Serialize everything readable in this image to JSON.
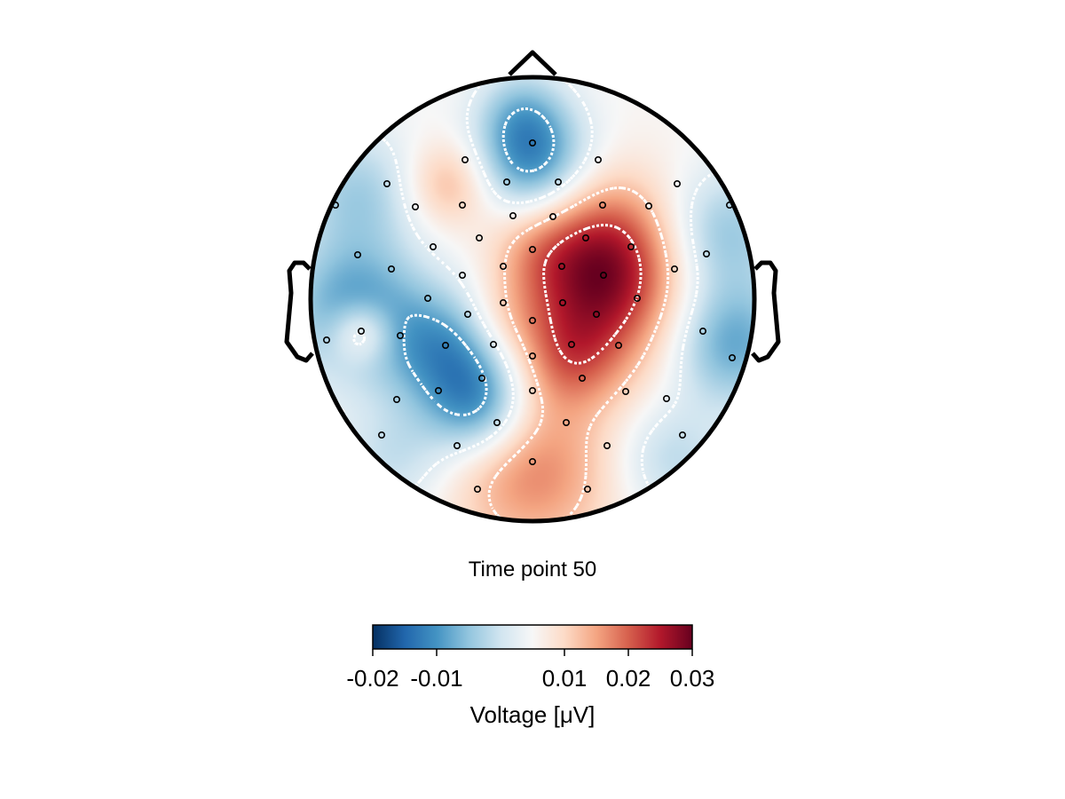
{
  "chart_data": {
    "type": "heatmap",
    "subtype": "topoplot",
    "title": "Time point 50",
    "colorbar": {
      "label": "Voltage [μV]",
      "range": [
        -0.02,
        0.03
      ],
      "ticks": [
        -0.02,
        -0.01,
        0.01,
        0.02,
        0.03
      ],
      "tick_labels": [
        "-0.02",
        "-0.01",
        "0.01",
        "0.02",
        "0.03"
      ],
      "colormap": "RdBu_r",
      "colormap_stops": [
        "#053061",
        "#2166ac",
        "#4393c3",
        "#92c5de",
        "#d1e5f0",
        "#f7f7f7",
        "#fddbc7",
        "#f4a582",
        "#d6604d",
        "#b2182b",
        "#67001f"
      ],
      "orientation": "horizontal",
      "position": "bottom"
    },
    "contours": {
      "style": "dotted",
      "color": "#ffffff"
    },
    "head_outline": {
      "nose": true,
      "ears": true,
      "color": "#000000"
    },
    "sensors": {
      "marker": "circle",
      "color": "#000000",
      "fill": "none",
      "count": 64
    },
    "field_description": "Approximate scalp potential pattern: strongest positive (red) over right-central region, positive patch at occipital/bottom, negative (blue) at frontal-midline top, left temporal-central band and left/right periphery."
  }
}
